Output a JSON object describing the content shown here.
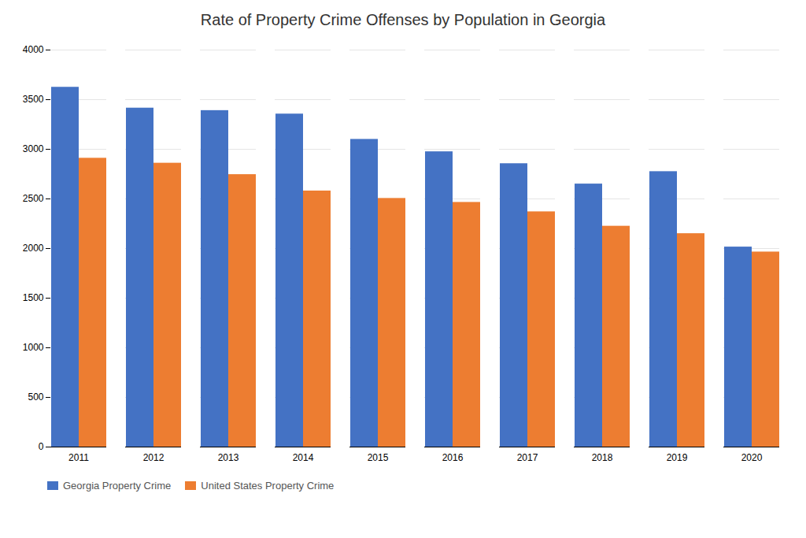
{
  "chart_data": {
    "type": "bar",
    "title": "Rate of Property Crime Offenses by Population in Georgia",
    "categories": [
      "2011",
      "2012",
      "2013",
      "2014",
      "2015",
      "2016",
      "2017",
      "2018",
      "2019",
      "2020"
    ],
    "series": [
      {
        "name": "Georgia Property Crime",
        "color": "#4472C4",
        "values": [
          3625,
          3415,
          3390,
          3355,
          3100,
          2975,
          2855,
          2650,
          2775,
          2015
        ]
      },
      {
        "name": "United States Property Crime",
        "color": "#ED7D31",
        "values": [
          2910,
          2860,
          2745,
          2580,
          2505,
          2465,
          2370,
          2225,
          2150,
          1965
        ]
      }
    ],
    "ylim": [
      0,
      4000
    ],
    "yticks": [
      0,
      500,
      1000,
      1500,
      2000,
      2500,
      3000,
      3500,
      4000
    ],
    "grid": true,
    "legend": "lower left"
  }
}
